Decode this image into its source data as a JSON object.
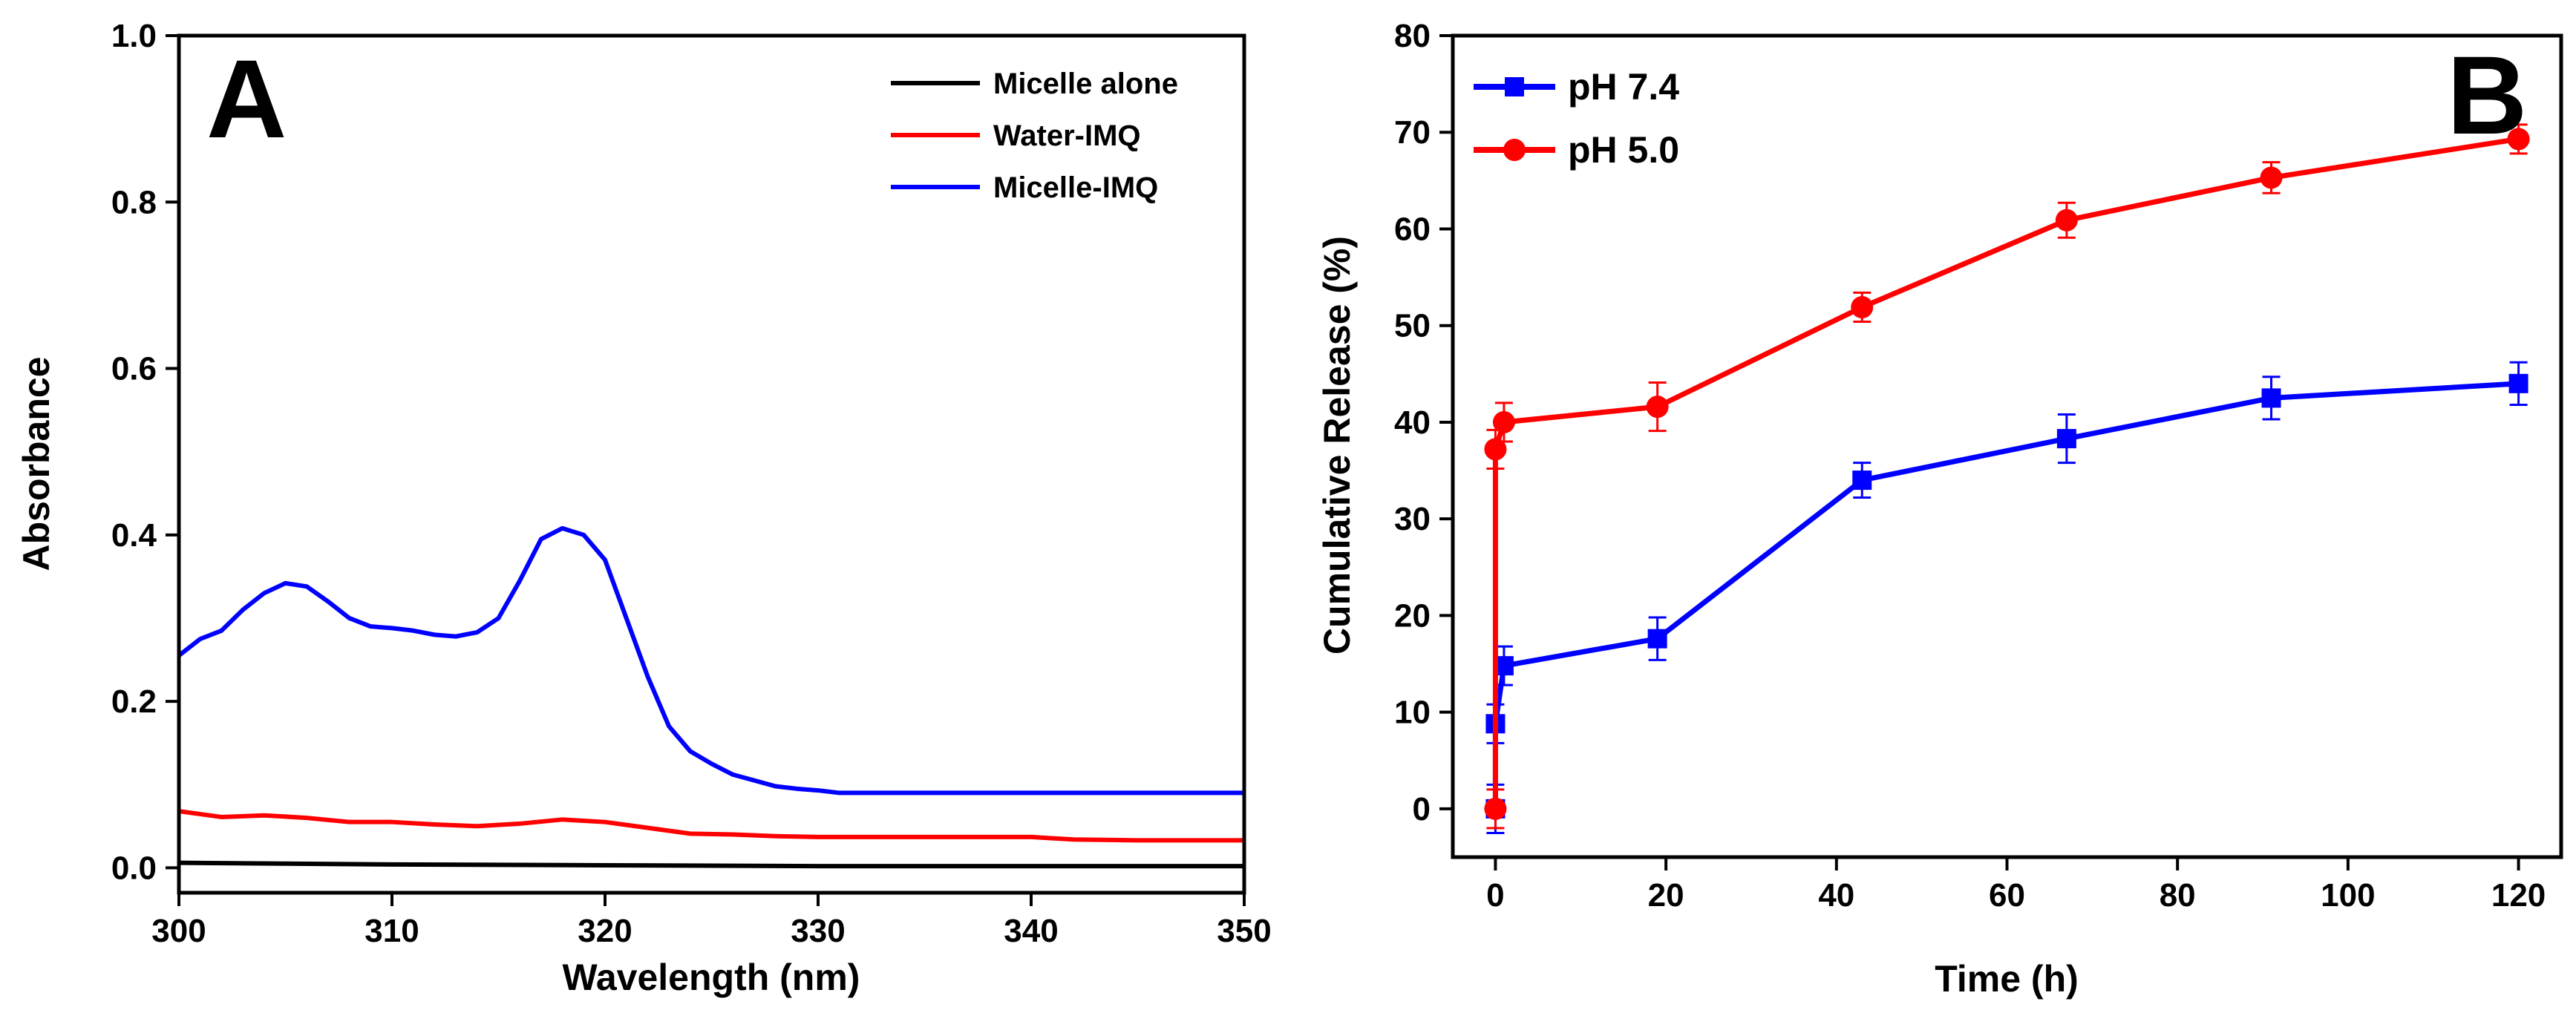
{
  "chart_data": [
    {
      "type": "line",
      "panel_label": "A",
      "xlabel": "Wavelength (nm)",
      "ylabel": "Absorbance",
      "xlim": [
        300,
        350
      ],
      "ylim": [
        -0.03,
        1.0
      ],
      "xticks": [
        300,
        310,
        320,
        330,
        340,
        350
      ],
      "yticks": [
        0.0,
        0.2,
        0.4,
        0.6,
        0.8,
        1.0
      ],
      "ytick_labels": [
        "0.0",
        "0.2",
        "0.4",
        "0.6",
        "0.8",
        "1.0"
      ],
      "legend_position": "top-right",
      "series": [
        {
          "name": "Micelle alone",
          "color": "#000000",
          "x": [
            300,
            305,
            310,
            320,
            330,
            340,
            350
          ],
          "y": [
            0.006,
            0.005,
            0.004,
            0.003,
            0.002,
            0.002,
            0.002
          ]
        },
        {
          "name": "Water-IMQ",
          "color": "#ff0000",
          "x": [
            300,
            302,
            304,
            306,
            308,
            310,
            312,
            314,
            316,
            318,
            320,
            322,
            324,
            326,
            328,
            330,
            335,
            340,
            342,
            345,
            350
          ],
          "y": [
            0.068,
            0.061,
            0.063,
            0.06,
            0.055,
            0.055,
            0.052,
            0.05,
            0.053,
            0.058,
            0.055,
            0.048,
            0.041,
            0.04,
            0.038,
            0.037,
            0.037,
            0.037,
            0.034,
            0.033,
            0.033
          ]
        },
        {
          "name": "Micelle-IMQ",
          "color": "#0000ff",
          "x": [
            300,
            301,
            302,
            303,
            304,
            305,
            306,
            307,
            308,
            309,
            310,
            311,
            312,
            313,
            314,
            315,
            316,
            317,
            318,
            319,
            320,
            321,
            322,
            323,
            324,
            325,
            326,
            327,
            328,
            329,
            330,
            331,
            335,
            340,
            345,
            350
          ],
          "y": [
            0.255,
            0.275,
            0.285,
            0.31,
            0.33,
            0.342,
            0.338,
            0.32,
            0.3,
            0.29,
            0.288,
            0.285,
            0.28,
            0.278,
            0.283,
            0.3,
            0.345,
            0.395,
            0.408,
            0.4,
            0.37,
            0.3,
            0.23,
            0.17,
            0.14,
            0.125,
            0.112,
            0.105,
            0.098,
            0.095,
            0.093,
            0.09,
            0.09,
            0.09,
            0.09,
            0.09
          ]
        }
      ]
    },
    {
      "type": "line",
      "panel_label": "B",
      "xlabel": "Time (h)",
      "ylabel": "Cumulative Release (%)",
      "xlim": [
        -5,
        125
      ],
      "ylim": [
        -5,
        80
      ],
      "xticks": [
        0,
        20,
        40,
        60,
        80,
        100,
        120
      ],
      "yticks": [
        0,
        10,
        20,
        30,
        40,
        50,
        60,
        70,
        80
      ],
      "legend_position": "top-left",
      "series": [
        {
          "name": "pH 7.4",
          "color": "#0000ff",
          "marker": "square",
          "x": [
            0,
            0,
            1,
            19,
            43,
            67,
            91,
            120
          ],
          "y": [
            0,
            8.8,
            14.8,
            17.6,
            34.0,
            38.3,
            42.5,
            44.0
          ],
          "err": [
            2.5,
            2.0,
            2.0,
            2.2,
            1.8,
            2.5,
            2.2,
            2.2
          ]
        },
        {
          "name": "pH 5.0",
          "color": "#ff0000",
          "marker": "circle",
          "x": [
            0,
            0,
            1,
            19,
            43,
            67,
            91,
            120
          ],
          "y": [
            0,
            37.2,
            40.0,
            41.6,
            51.9,
            60.9,
            65.3,
            69.3
          ],
          "err": [
            2.0,
            2.0,
            2.0,
            2.5,
            1.5,
            1.8,
            1.6,
            1.5
          ]
        }
      ]
    }
  ]
}
